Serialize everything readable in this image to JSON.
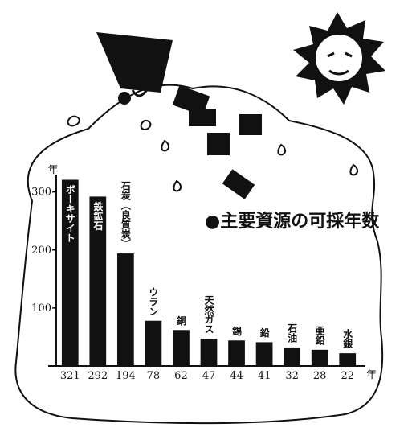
{
  "chart_data": {
    "type": "bar",
    "title": "●主要資源の可採年数",
    "y_axis_label": "年",
    "x_unit_label": "年",
    "categories": [
      "ボーキサイト",
      "鉄鉱石",
      "石炭（良質炭）",
      "ウラン",
      "銅",
      "天然ガス",
      "錫",
      "鉛",
      "石油",
      "亜鉛",
      "水銀"
    ],
    "values": [
      321,
      292,
      194,
      78,
      62,
      47,
      44,
      41,
      32,
      28,
      22
    ],
    "color": "#111111",
    "ylim": [
      0,
      330
    ],
    "yticks": [
      100,
      200,
      300
    ],
    "grid": false
  }
}
